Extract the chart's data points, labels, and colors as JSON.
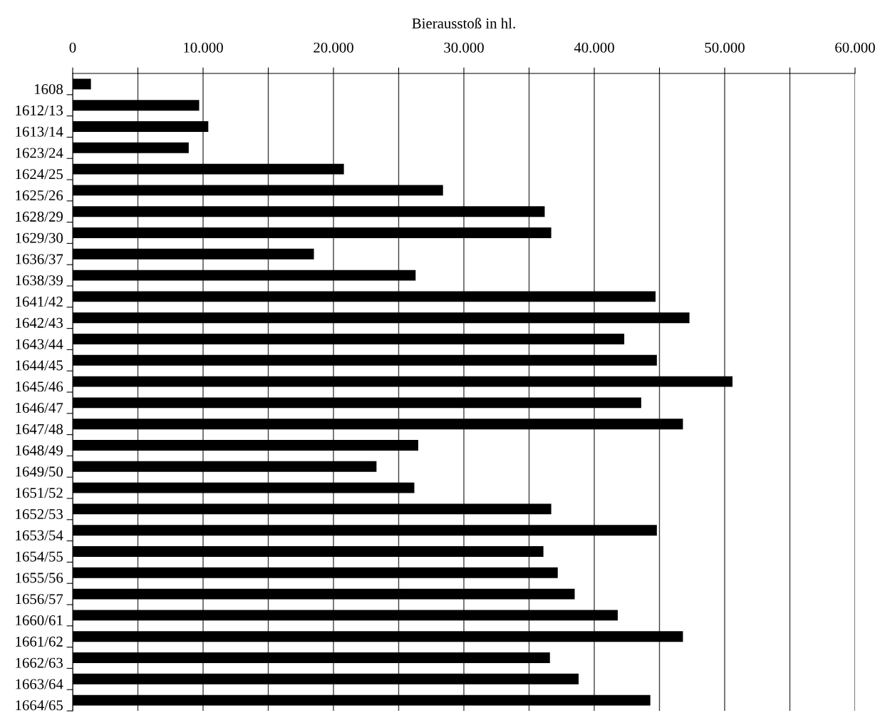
{
  "chart_data": {
    "type": "bar",
    "orientation": "horizontal",
    "xlabel": "Bierausstoß in hl.",
    "categories": [
      "1608",
      "1612/13",
      "1613/14",
      "1623/24",
      "1624/25",
      "1625/26",
      "1628/29",
      "1629/30",
      "1636/37",
      "1638/39",
      "1641/42",
      "1642/43",
      "1643/44",
      "1644/45",
      "1645/46",
      "1646/47",
      "1647/48",
      "1648/49",
      "1649/50",
      "1651/52",
      "1652/53",
      "1653/54",
      "1654/55",
      "1655/56",
      "1656/57",
      "1660/61",
      "1661/62",
      "1662/63",
      "1663/64",
      "1664/65"
    ],
    "values": [
      1400,
      9700,
      10400,
      8900,
      20800,
      28400,
      36200,
      36700,
      18500,
      26300,
      44700,
      47300,
      42300,
      44800,
      50600,
      43600,
      46800,
      26500,
      23300,
      26200,
      36700,
      44800,
      36100,
      37200,
      38500,
      41800,
      46800,
      36600,
      38800,
      44300
    ],
    "color": "#000000",
    "xlim": [
      0,
      60000
    ],
    "xticks": [
      0,
      {
        "value": 5000,
        "label": null
      },
      {
        "value": 10000,
        "label": "10.000"
      },
      {
        "value": 15000,
        "label": null
      },
      {
        "value": 20000,
        "label": "20.000"
      },
      {
        "value": 25000,
        "label": null
      },
      {
        "value": 30000,
        "label": "30.000"
      },
      {
        "value": 35000,
        "label": null
      },
      {
        "value": 40000,
        "label": "40.000"
      },
      {
        "value": 45000,
        "label": null
      },
      {
        "value": 50000,
        "label": "50.000"
      },
      {
        "value": 55000,
        "label": null
      },
      {
        "value": 60000,
        "label": "60.000"
      }
    ],
    "grid": "x"
  }
}
